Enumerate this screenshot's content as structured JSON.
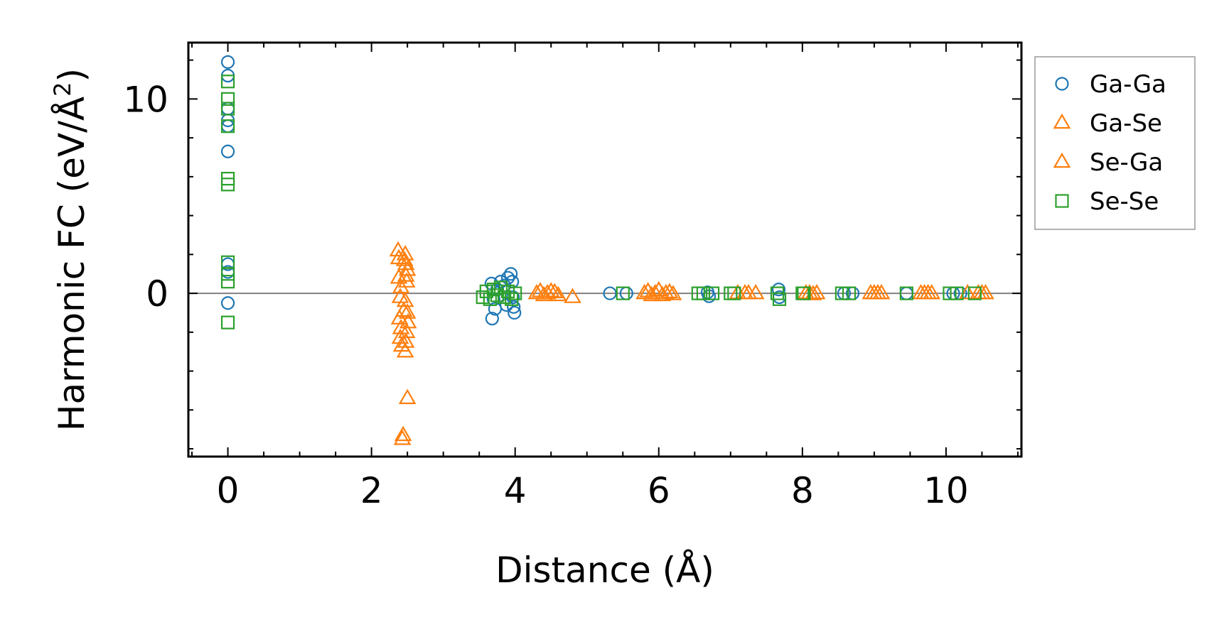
{
  "chart_data": {
    "type": "scatter",
    "xlabel": "Distance (Å)",
    "ylabel_main": "Harmonic FC (eV/Å",
    "ylabel_sup": "2",
    "ylabel_close": ")",
    "xlim": [
      -0.55,
      11.05
    ],
    "ylim": [
      -8.4,
      12.9
    ],
    "xticks": [
      0,
      2,
      4,
      6,
      8,
      10
    ],
    "yticks": [
      0,
      10
    ],
    "xtick_labels": [
      "0",
      "2",
      "4",
      "6",
      "8",
      "10"
    ],
    "ytick_labels": [
      "0",
      "10"
    ],
    "x_minor_step": 0.5,
    "y_minor_step": 2,
    "zero_line": true,
    "legend_position": "outside-right",
    "series": [
      {
        "name": "Ga-Ga",
        "marker": "circle",
        "color": "#1f77b4",
        "points": [
          [
            0,
            11.9
          ],
          [
            0,
            11.2
          ],
          [
            0,
            9.5
          ],
          [
            0,
            8.9
          ],
          [
            0,
            8.6
          ],
          [
            0,
            7.3
          ],
          [
            0,
            1.5
          ],
          [
            0,
            1.1
          ],
          [
            0,
            -0.5
          ],
          [
            3.67,
            0.5
          ],
          [
            3.7,
            -0.3
          ],
          [
            3.68,
            -1.3
          ],
          [
            3.72,
            -0.8
          ],
          [
            3.75,
            0.2
          ],
          [
            3.8,
            0.6
          ],
          [
            3.85,
            0.4
          ],
          [
            3.88,
            -0.6
          ],
          [
            3.9,
            0.8
          ],
          [
            3.94,
            1.0
          ],
          [
            3.96,
            0.6
          ],
          [
            3.97,
            -0.2
          ],
          [
            3.98,
            -0.7
          ],
          [
            3.99,
            -1.0
          ],
          [
            5.32,
            0.0
          ],
          [
            5.55,
            0.0
          ],
          [
            6.68,
            0.05
          ],
          [
            6.7,
            -0.15
          ],
          [
            7.67,
            0.2
          ],
          [
            7.68,
            -0.2
          ],
          [
            8.58,
            0.0
          ],
          [
            8.7,
            0.0
          ],
          [
            9.45,
            0.0
          ],
          [
            10.1,
            0.0
          ],
          [
            10.2,
            0.0
          ]
        ]
      },
      {
        "name": "Ga-Se",
        "marker": "triangle",
        "color": "#ff7f0e",
        "points": [
          [
            2.37,
            2.2
          ],
          [
            2.38,
            1.8
          ],
          [
            2.4,
            -0.2
          ],
          [
            2.39,
            -1.3
          ],
          [
            2.41,
            -1.8
          ],
          [
            2.4,
            -2.3
          ],
          [
            2.42,
            -2.7
          ],
          [
            2.43,
            -7.5
          ],
          [
            2.44,
            -7.3
          ],
          [
            2.47,
            2.0
          ],
          [
            2.48,
            1.5
          ],
          [
            2.5,
            1.2
          ],
          [
            2.48,
            0.9
          ],
          [
            2.49,
            0.6
          ],
          [
            2.47,
            -0.4
          ],
          [
            2.5,
            -1.0
          ],
          [
            2.51,
            -1.5
          ],
          [
            2.49,
            -2.0
          ],
          [
            2.48,
            -2.5
          ],
          [
            2.47,
            -3.0
          ],
          [
            2.5,
            -5.4
          ],
          [
            4.35,
            0.1
          ],
          [
            4.45,
            0.0
          ],
          [
            4.55,
            0.05
          ],
          [
            4.8,
            -0.2
          ],
          [
            5.85,
            0.1
          ],
          [
            5.95,
            0.0
          ],
          [
            6.05,
            -0.1
          ],
          [
            6.15,
            0.05
          ],
          [
            7.2,
            0.0
          ],
          [
            7.35,
            0.0
          ],
          [
            8.05,
            0.0
          ],
          [
            8.2,
            0.0
          ],
          [
            9.0,
            0.0
          ],
          [
            9.1,
            0.0
          ],
          [
            9.65,
            0.0
          ],
          [
            9.8,
            0.0
          ],
          [
            10.45,
            0.0
          ],
          [
            10.55,
            0.0
          ]
        ]
      },
      {
        "name": "Se-Ga",
        "marker": "triangle",
        "color": "#ff7f0e",
        "points": [
          [
            2.38,
            0.8
          ],
          [
            2.41,
            0.3
          ],
          [
            2.45,
            -0.9
          ],
          [
            2.46,
            1.7
          ],
          [
            4.3,
            0.0
          ],
          [
            4.4,
            -0.1
          ],
          [
            4.5,
            0.1
          ],
          [
            4.6,
            -0.1
          ],
          [
            5.8,
            0.0
          ],
          [
            5.9,
            -0.1
          ],
          [
            6.0,
            0.15
          ],
          [
            6.1,
            0.0
          ],
          [
            6.2,
            -0.05
          ],
          [
            7.1,
            0.0
          ],
          [
            7.25,
            0.0
          ],
          [
            8.1,
            0.0
          ],
          [
            8.15,
            -0.05
          ],
          [
            8.95,
            0.0
          ],
          [
            9.05,
            0.0
          ],
          [
            9.7,
            0.0
          ],
          [
            9.75,
            0.0
          ],
          [
            10.3,
            0.0
          ],
          [
            10.5,
            0.0
          ]
        ]
      },
      {
        "name": "Se-Se",
        "marker": "square",
        "color": "#2ca02c",
        "points": [
          [
            0,
            10.9
          ],
          [
            0,
            10.0
          ],
          [
            0,
            9.5
          ],
          [
            0,
            8.6
          ],
          [
            0,
            5.9
          ],
          [
            0,
            5.6
          ],
          [
            0,
            1.6
          ],
          [
            0,
            1.0
          ],
          [
            0,
            0.6
          ],
          [
            0,
            -1.5
          ],
          [
            3.55,
            -0.2
          ],
          [
            3.6,
            0.1
          ],
          [
            3.65,
            -0.3
          ],
          [
            3.7,
            0.2
          ],
          [
            3.75,
            -0.1
          ],
          [
            3.8,
            0.3
          ],
          [
            3.85,
            -0.2
          ],
          [
            3.9,
            0.1
          ],
          [
            3.95,
            -0.3
          ],
          [
            4.0,
            0.0
          ],
          [
            5.5,
            0.0
          ],
          [
            6.55,
            0.0
          ],
          [
            6.62,
            0.0
          ],
          [
            6.75,
            0.0
          ],
          [
            7.0,
            0.0
          ],
          [
            7.05,
            0.0
          ],
          [
            7.65,
            0.0
          ],
          [
            7.68,
            -0.3
          ],
          [
            8.0,
            0.0
          ],
          [
            8.02,
            0.0
          ],
          [
            8.55,
            0.0
          ],
          [
            8.65,
            0.0
          ],
          [
            9.45,
            0.0
          ],
          [
            10.05,
            0.0
          ],
          [
            10.15,
            0.0
          ],
          [
            10.4,
            0.0
          ]
        ]
      }
    ]
  }
}
